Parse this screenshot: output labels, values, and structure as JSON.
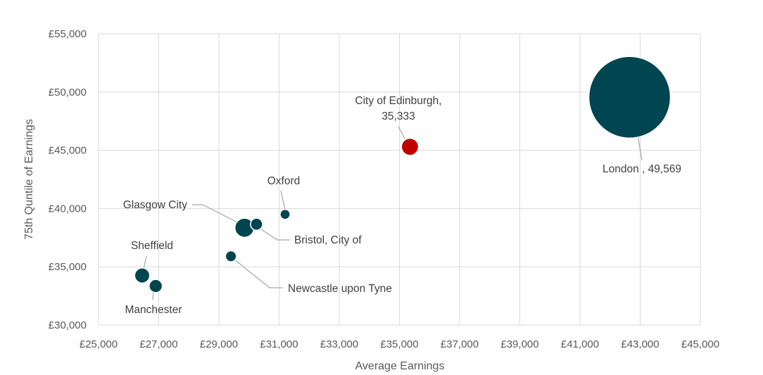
{
  "chart_data": {
    "type": "bubble",
    "title": "",
    "xlabel": "Average Earnings",
    "ylabel": "75th Quntile of Earnings",
    "xlim": [
      25000,
      45000
    ],
    "ylim": [
      30000,
      55000
    ],
    "x_ticks": [
      25000,
      27000,
      29000,
      31000,
      33000,
      35000,
      37000,
      39000,
      41000,
      43000,
      45000
    ],
    "y_ticks": [
      30000,
      35000,
      40000,
      45000,
      50000,
      55000
    ],
    "x_tick_labels": [
      "£25,000",
      "£27,000",
      "£29,000",
      "£31,000",
      "£33,000",
      "£35,000",
      "£37,000",
      "£39,000",
      "£41,000",
      "£43,000",
      "£45,000"
    ],
    "y_tick_labels": [
      "£30,000",
      "£35,000",
      "£40,000",
      "£45,000",
      "£50,000",
      "£55,000"
    ],
    "grid": true,
    "legend": "none",
    "colors": {
      "default": "#004550",
      "highlight": "#c00000",
      "grid": "#d9d9d9",
      "text": "#595959"
    },
    "points": [
      {
        "name": "London",
        "label_lines": [
          "London , 49,569"
        ],
        "x": 42650,
        "y": 49550,
        "size": 100,
        "highlight": false
      },
      {
        "name": "City of Edinburgh",
        "label_lines": [
          "City of Edinburgh,",
          "35,333"
        ],
        "x": 35350,
        "y": 45300,
        "size": 4.4,
        "highlight": true
      },
      {
        "name": "Oxford",
        "label_lines": [
          "Oxford"
        ],
        "x": 31200,
        "y": 39500,
        "size": 1.5,
        "highlight": false
      },
      {
        "name": "Glasgow City",
        "label_lines": [
          "Glasgow City"
        ],
        "x": 29850,
        "y": 38350,
        "size": 5.5,
        "highlight": false
      },
      {
        "name": "Bristol, City of",
        "label_lines": [
          "Bristol, City of"
        ],
        "x": 30250,
        "y": 38650,
        "size": 2.2,
        "highlight": false
      },
      {
        "name": "Newcastle upon Tyne",
        "label_lines": [
          "Newcastle upon Tyne"
        ],
        "x": 29400,
        "y": 35900,
        "size": 1.8,
        "highlight": false
      },
      {
        "name": "Sheffield",
        "label_lines": [
          "Sheffield"
        ],
        "x": 26450,
        "y": 34250,
        "size": 3.4,
        "highlight": false
      },
      {
        "name": "Manchester",
        "label_lines": [
          "Manchester"
        ],
        "x": 26900,
        "y": 33350,
        "size": 2.6,
        "highlight": false
      }
    ]
  }
}
